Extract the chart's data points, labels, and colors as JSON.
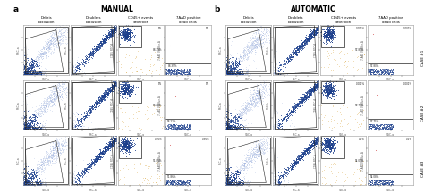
{
  "title_manual": "MANUAL",
  "title_automatic": "AUTOMATIC",
  "label_a": "a",
  "label_b": "b",
  "col_headers": [
    "Debris\nExclusion",
    "Doublets\nExclusion",
    "CD45+ events\nSelection",
    "7AAD positive\ndead cells"
  ],
  "row_labels": [
    "CASE #1",
    "CASE #2",
    "CASE #3"
  ],
  "manual_cd45_top": [
    "0%",
    "0%",
    "0.36%"
  ],
  "manual_cd45_bot": [
    "88.39%",
    "96.22%",
    "91.86%"
  ],
  "auto_cd45_top": [
    "0.001%",
    "0.001%",
    "0.2%"
  ],
  "auto_cd45_bot": [
    "97.80%",
    "97.75%",
    "94.08%"
  ],
  "manual_7aad_top": [
    "0%",
    "0%",
    "0.36%"
  ],
  "manual_7aad_bot": [
    "88.39%",
    "96.22%",
    "91.86%"
  ],
  "auto_7aad_top": [
    "0.001%",
    "0.001%",
    "0.2%"
  ],
  "auto_7aad_bot": [
    "97.80%",
    "97.75%",
    "94.08%"
  ],
  "bg_color": "#ffffff",
  "plot_bg": "#ffffff",
  "dot_blue_dark": "#1c3f8c",
  "dot_blue_med": "#4466bb",
  "dot_blue_light": "#99aedd",
  "dot_orange": "#cc8800",
  "dot_red": "#cc3333",
  "gate_black": "#222222",
  "gate_red": "#cc2222",
  "spine_color": "#999999",
  "text_color": "#222222",
  "label_fontsize": 3.5,
  "tick_fontsize": 2.2,
  "header_fontsize": 2.8,
  "title_fontsize": 5.5,
  "abc_fontsize": 6.5,
  "row_label_fontsize": 3.0
}
